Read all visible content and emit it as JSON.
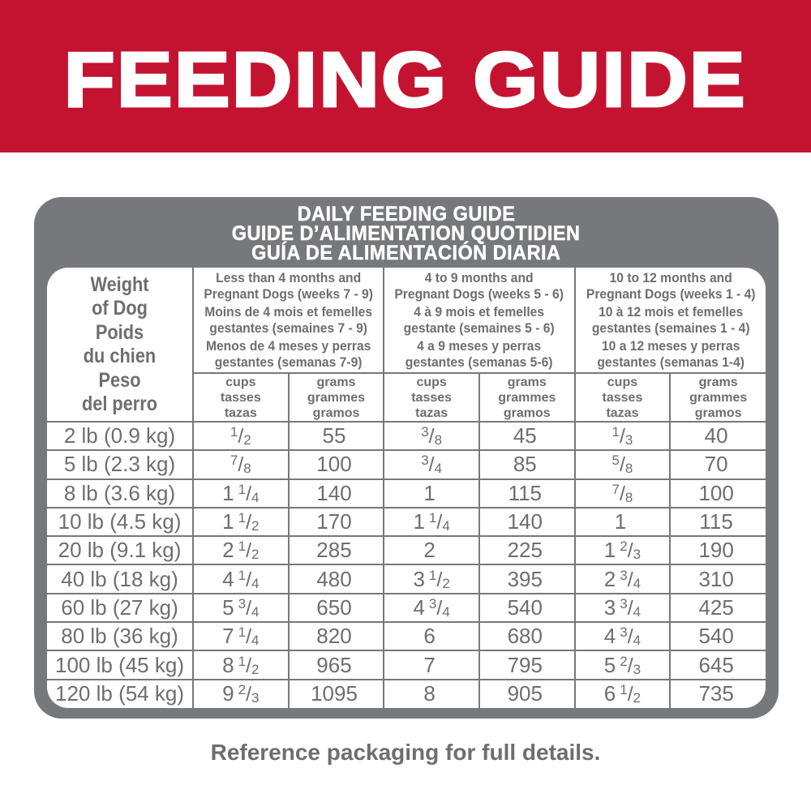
{
  "banner": {
    "title": "FEEDING GUIDE",
    "bg_color": "#C41330",
    "text_color": "#FFFFFF"
  },
  "card": {
    "bg_color": "#77787B",
    "title_lines": [
      "DAILY FEEDING GUIDE",
      "GUIDE D’ALIMENTATION QUOTIDIEN",
      "GUÍA DE ALIMENTACIÓN DIARIA"
    ]
  },
  "table": {
    "weight_header_pairs": [
      [
        "Weight",
        "of Dog"
      ],
      [
        "Poids",
        "du chien"
      ],
      [
        "Peso",
        "del perro"
      ]
    ],
    "group_headers": [
      [
        [
          "Less than 4 months and",
          "Pregnant Dogs (weeks 7 - 9)"
        ],
        [
          "Moins de 4 mois et femelles",
          "gestantes (semaines 7 - 9)"
        ],
        [
          "Menos de 4 meses y perras",
          "gestantes (semanas 7-9)"
        ]
      ],
      [
        [
          "4 to 9 months and",
          "Pregnant Dogs (weeks 5 - 6)"
        ],
        [
          "4 à 9 mois et femelles",
          "gestante (semaines 5 - 6)"
        ],
        [
          "4 a 9 meses y perras",
          "gestantes (semanas 5-6)"
        ]
      ],
      [
        [
          "10 to 12 months and",
          "Pregnant Dogs (weeks 1 - 4)"
        ],
        [
          "10 à 12 mois et femelles",
          "gestantes (semaines 1 - 4)"
        ],
        [
          "10 a 12 meses y perras",
          "gestantes (semanas 1-4)"
        ]
      ]
    ],
    "unit_headers": {
      "cups": [
        "cups",
        "tasses",
        "tazas"
      ],
      "grams": [
        "grams",
        "grammes",
        "gramos"
      ]
    },
    "rows": [
      {
        "weight": "2 lb (0.9 kg)",
        "values": [
          "1/2",
          "55",
          "3/8",
          "45",
          "1/3",
          "40"
        ]
      },
      {
        "weight": "5 lb (2.3 kg)",
        "values": [
          "7/8",
          "100",
          "3/4",
          "85",
          "5/8",
          "70"
        ]
      },
      {
        "weight": "8 lb (3.6 kg)",
        "values": [
          "1 1/4",
          "140",
          "1",
          "115",
          "7/8",
          "100"
        ]
      },
      {
        "weight": "10 lb (4.5 kg)",
        "values": [
          "1 1/2",
          "170",
          "1 1/4",
          "140",
          "1",
          "115"
        ]
      },
      {
        "weight": "20 lb (9.1 kg)",
        "values": [
          "2 1/2",
          "285",
          "2",
          "225",
          "1 2/3",
          "190"
        ]
      },
      {
        "weight": "40 lb (18 kg)",
        "values": [
          "4 1/4",
          "480",
          "3 1/2",
          "395",
          "2 3/4",
          "310"
        ]
      },
      {
        "weight": "60 lb (27 kg)",
        "values": [
          "5 3/4",
          "650",
          "4 3/4",
          "540",
          "3 3/4",
          "425"
        ]
      },
      {
        "weight": "80 lb (36 kg)",
        "values": [
          "7 1/4",
          "820",
          "6",
          "680",
          "4 3/4",
          "540"
        ]
      },
      {
        "weight": "100 lb (45 kg)",
        "values": [
          "8 1/2",
          "965",
          "7",
          "795",
          "5 2/3",
          "645"
        ]
      },
      {
        "weight": "120 lb (54 kg)",
        "values": [
          "9 2/3",
          "1095",
          "8",
          "905",
          "6 1/2",
          "735"
        ]
      }
    ]
  },
  "footer": {
    "note": "Reference packaging for full details."
  }
}
